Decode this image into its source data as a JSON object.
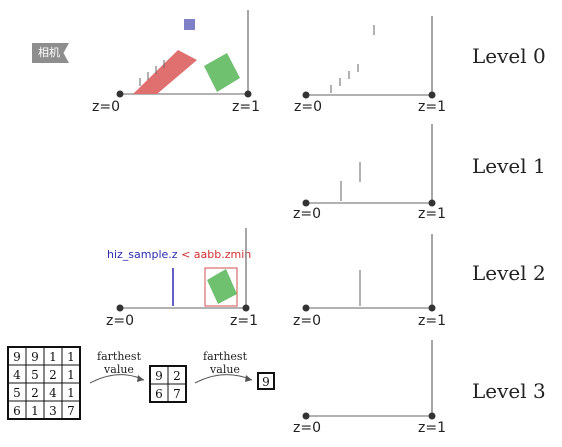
{
  "camera_badge": "相机",
  "levels": [
    "Level 0",
    "Level 1",
    "Level 2",
    "Level 3"
  ],
  "axis": {
    "near": "z=0",
    "far": "z=1"
  },
  "condition": {
    "part1": "hiz_sample.z",
    "op": " < ",
    "part2": "aabb.zmin"
  },
  "reduction": {
    "step_label_line1": "farthest",
    "step_label_line2": "value",
    "grid4": [
      [
        "9",
        "9",
        "1",
        "1"
      ],
      [
        "4",
        "5",
        "2",
        "1"
      ],
      [
        "5",
        "2",
        "4",
        "1"
      ],
      [
        "6",
        "1",
        "3",
        "7"
      ]
    ],
    "grid2": [
      [
        "9",
        "2"
      ],
      [
        "6",
        "7"
      ]
    ],
    "grid1": "9"
  },
  "colors": {
    "camera_bar": "#e07070",
    "box": "#6fc06f",
    "point": "#8080c8",
    "sample": "#2c2cb0",
    "aabb_outline": "#d05050"
  }
}
